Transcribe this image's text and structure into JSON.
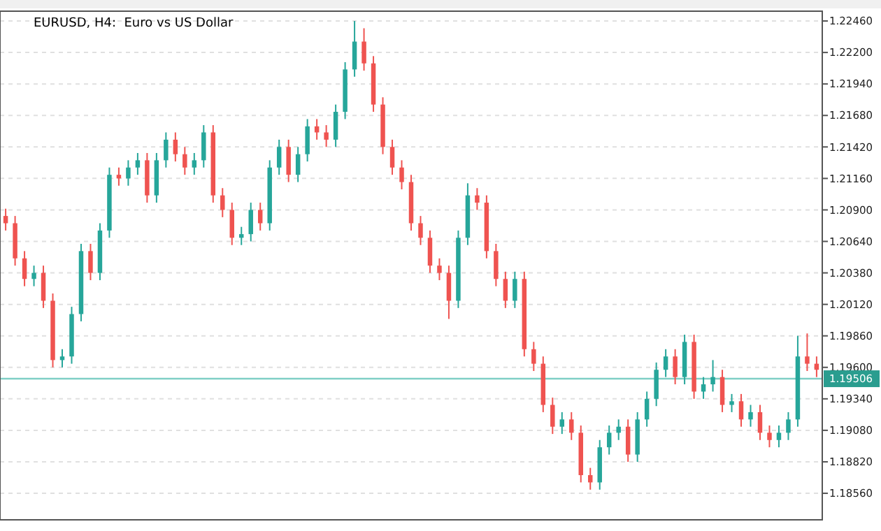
{
  "chart_data": {
    "type": "candlestick",
    "title": "EURUSD, H4:  Euro vs US Dollar",
    "categories": [
      null,
      null,
      null,
      null,
      null,
      null,
      null,
      null,
      null,
      null,
      null,
      null,
      null,
      null,
      null,
      null,
      null,
      null,
      null,
      null,
      null,
      null,
      null,
      null,
      null,
      null,
      null,
      null,
      null,
      null,
      null,
      null,
      null,
      null,
      null,
      null,
      null,
      null,
      null,
      null,
      null,
      null,
      null,
      null,
      null,
      null,
      null,
      null,
      null,
      null,
      null,
      null,
      null,
      null,
      null,
      null,
      null,
      null,
      null,
      null,
      null,
      null,
      null,
      null,
      null,
      null,
      null,
      null,
      null,
      null,
      null,
      null,
      null,
      null,
      null,
      null,
      null,
      null,
      null,
      null,
      null,
      null,
      null,
      null,
      null,
      null,
      null
    ],
    "ohlc": [
      [
        1.2085,
        1.2091,
        1.2073,
        1.2079
      ],
      [
        1.2079,
        1.2085,
        1.2044,
        1.205
      ],
      [
        1.205,
        1.2056,
        1.2027,
        1.2033
      ],
      [
        1.2033,
        1.2044,
        1.2027,
        1.2038
      ],
      [
        1.2038,
        1.2044,
        1.2009,
        1.2015
      ],
      [
        1.2015,
        1.2021,
        1.196,
        1.1966
      ],
      [
        1.1966,
        1.1975,
        1.196,
        1.1969
      ],
      [
        1.1969,
        1.201,
        1.1963,
        1.2004
      ],
      [
        1.2004,
        1.2062,
        1.1998,
        1.2056
      ],
      [
        1.2056,
        1.2062,
        1.2032,
        1.2038
      ],
      [
        1.2038,
        1.2079,
        1.2032,
        1.2073
      ],
      [
        1.2073,
        1.2125,
        1.2067,
        1.2119
      ],
      [
        1.2119,
        1.2125,
        1.211,
        1.2116
      ],
      [
        1.2116,
        1.2131,
        1.211,
        1.2125
      ],
      [
        1.2125,
        1.2137,
        1.2119,
        1.2131
      ],
      [
        1.2131,
        1.2137,
        1.2096,
        1.2102
      ],
      [
        1.2102,
        1.2137,
        1.2096,
        1.2131
      ],
      [
        1.2131,
        1.2154,
        1.2125,
        1.2148
      ],
      [
        1.2148,
        1.2154,
        1.213,
        1.2136
      ],
      [
        1.2136,
        1.2142,
        1.2119,
        1.2125
      ],
      [
        1.2125,
        1.2137,
        1.2119,
        1.2131
      ],
      [
        1.2131,
        1.216,
        1.2125,
        1.2154
      ],
      [
        1.2154,
        1.216,
        1.2096,
        1.2102
      ],
      [
        1.2102,
        1.2108,
        1.2084,
        1.209
      ],
      [
        1.209,
        1.2096,
        1.2061,
        1.2067
      ],
      [
        1.2067,
        1.2076,
        1.2061,
        1.207
      ],
      [
        1.207,
        1.2096,
        1.2064,
        1.209
      ],
      [
        1.209,
        1.2096,
        1.2073,
        1.2079
      ],
      [
        1.2079,
        1.2131,
        1.2073,
        1.2125
      ],
      [
        1.2125,
        1.2148,
        1.2119,
        1.2142
      ],
      [
        1.2142,
        1.2148,
        1.2113,
        1.2119
      ],
      [
        1.2119,
        1.2142,
        1.2113,
        1.2136
      ],
      [
        1.2136,
        1.2165,
        1.213,
        1.2159
      ],
      [
        1.2159,
        1.2165,
        1.2148,
        1.2154
      ],
      [
        1.2154,
        1.216,
        1.2142,
        1.2148
      ],
      [
        1.2148,
        1.2177,
        1.2142,
        1.2171
      ],
      [
        1.2171,
        1.2212,
        1.2165,
        1.2206
      ],
      [
        1.2206,
        1.2246,
        1.22,
        1.2229
      ],
      [
        1.2229,
        1.224,
        1.2205,
        1.2211
      ],
      [
        1.2211,
        1.2217,
        1.2171,
        1.2177
      ],
      [
        1.2177,
        1.2183,
        1.2136,
        1.2142
      ],
      [
        1.2142,
        1.2148,
        1.2119,
        1.2125
      ],
      [
        1.2125,
        1.2131,
        1.2107,
        1.2113
      ],
      [
        1.2113,
        1.2119,
        1.2073,
        1.2079
      ],
      [
        1.2079,
        1.2085,
        1.2061,
        1.2067
      ],
      [
        1.2067,
        1.2073,
        1.2038,
        1.2044
      ],
      [
        1.2044,
        1.205,
        1.2032,
        1.2038
      ],
      [
        1.2038,
        1.2044,
        1.2,
        1.2015
      ],
      [
        1.2015,
        1.2073,
        1.2009,
        1.2067
      ],
      [
        1.2067,
        1.2112,
        1.2061,
        1.2102
      ],
      [
        1.2102,
        1.2108,
        1.209,
        1.2096
      ],
      [
        1.2096,
        1.2102,
        1.205,
        1.2056
      ],
      [
        1.2056,
        1.2062,
        1.2027,
        1.2033
      ],
      [
        1.2033,
        1.2039,
        1.2009,
        1.2015
      ],
      [
        1.2015,
        1.2039,
        1.2009,
        1.2033
      ],
      [
        1.2033,
        1.2039,
        1.1969,
        1.1975
      ],
      [
        1.1975,
        1.1981,
        1.1957,
        1.1963
      ],
      [
        1.1963,
        1.1969,
        1.1923,
        1.1929
      ],
      [
        1.1929,
        1.1935,
        1.1905,
        1.1911
      ],
      [
        1.1911,
        1.1923,
        1.1905,
        1.1917
      ],
      [
        1.1917,
        1.1923,
        1.19,
        1.1906
      ],
      [
        1.1906,
        1.1912,
        1.1865,
        1.1871
      ],
      [
        1.1871,
        1.1877,
        1.1859,
        1.1865
      ],
      [
        1.1865,
        1.19,
        1.1859,
        1.1894
      ],
      [
        1.1894,
        1.1912,
        1.1888,
        1.1906
      ],
      [
        1.1906,
        1.1917,
        1.19,
        1.1911
      ],
      [
        1.1911,
        1.1917,
        1.1882,
        1.1888
      ],
      [
        1.1888,
        1.1923,
        1.1882,
        1.1917
      ],
      [
        1.1917,
        1.194,
        1.1911,
        1.1934
      ],
      [
        1.1934,
        1.1964,
        1.1928,
        1.1958
      ],
      [
        1.1958,
        1.1975,
        1.1952,
        1.1969
      ],
      [
        1.1969,
        1.1975,
        1.1946,
        1.1952
      ],
      [
        1.1952,
        1.1987,
        1.1946,
        1.1981
      ],
      [
        1.1981,
        1.1987,
        1.1934,
        1.194
      ],
      [
        1.194,
        1.1952,
        1.1934,
        1.1946
      ],
      [
        1.1946,
        1.1966,
        1.194,
        1.1952
      ],
      [
        1.1952,
        1.1958,
        1.1923,
        1.1929
      ],
      [
        1.1929,
        1.1938,
        1.1923,
        1.1932
      ],
      [
        1.1932,
        1.1938,
        1.1911,
        1.1917
      ],
      [
        1.1917,
        1.1929,
        1.1911,
        1.1923
      ],
      [
        1.1923,
        1.1929,
        1.19,
        1.1906
      ],
      [
        1.1906,
        1.1912,
        1.1894,
        1.19
      ],
      [
        1.19,
        1.1912,
        1.1894,
        1.1906
      ],
      [
        1.1906,
        1.1923,
        1.19,
        1.1917
      ],
      [
        1.1917,
        1.1986,
        1.1911,
        1.1969
      ],
      [
        1.1969,
        1.1988,
        1.1957,
        1.1963
      ],
      [
        1.1963,
        1.1969,
        1.1952,
        1.1958
      ]
    ],
    "colors": [
      "#ef5350",
      "#ef5350",
      "#ef5350",
      "#26a69a",
      "#ef5350",
      "#ef5350",
      "#26a69a",
      "#26a69a",
      "#26a69a",
      "#ef5350",
      "#26a69a",
      "#26a69a",
      "#ef5350",
      "#26a69a",
      "#26a69a",
      "#ef5350",
      "#26a69a",
      "#26a69a",
      "#ef5350",
      "#ef5350",
      "#26a69a",
      "#26a69a",
      "#ef5350",
      "#ef5350",
      "#ef5350",
      "#26a69a",
      "#26a69a",
      "#ef5350",
      "#26a69a",
      "#26a69a",
      "#ef5350",
      "#26a69a",
      "#26a69a",
      "#ef5350",
      "#ef5350",
      "#26a69a",
      "#26a69a",
      "#26a69a",
      "#ef5350",
      "#ef5350",
      "#ef5350",
      "#ef5350",
      "#ef5350",
      "#ef5350",
      "#ef5350",
      "#ef5350",
      "#ef5350",
      "#ef5350",
      "#26a69a",
      "#26a69a",
      "#ef5350",
      "#ef5350",
      "#ef5350",
      "#ef5350",
      "#26a69a",
      "#ef5350",
      "#ef5350",
      "#ef5350",
      "#ef5350",
      "#26a69a",
      "#ef5350",
      "#ef5350",
      "#ef5350",
      "#26a69a",
      "#26a69a",
      "#26a69a",
      "#ef5350",
      "#26a69a",
      "#26a69a",
      "#26a69a",
      "#26a69a",
      "#ef5350",
      "#26a69a",
      "#ef5350",
      "#26a69a",
      "#26a69a",
      "#ef5350",
      "#26a69a",
      "#ef5350",
      "#26a69a",
      "#ef5350",
      "#ef5350",
      "#26a69a",
      "#26a69a",
      "#26a69a",
      "#ef5350",
      "#ef5350"
    ],
    "ylim": [
      1.18341,
      1.22541
    ],
    "yticks": [
      {
        "value": 1.1856,
        "label": "1.18560"
      },
      {
        "value": 1.1882,
        "label": "1.18820"
      },
      {
        "value": 1.1908,
        "label": "1.19080"
      },
      {
        "value": 1.1934,
        "label": "1.19340"
      },
      {
        "value": 1.196,
        "label": "1.19600"
      },
      {
        "value": 1.1986,
        "label": "1.19860"
      },
      {
        "value": 1.2012,
        "label": "1.20120"
      },
      {
        "value": 1.2038,
        "label": "1.20380"
      },
      {
        "value": 1.2064,
        "label": "1.20640"
      },
      {
        "value": 1.209,
        "label": "1.20900"
      },
      {
        "value": 1.2116,
        "label": "1.21160"
      },
      {
        "value": 1.2142,
        "label": "1.21420"
      },
      {
        "value": 1.2168,
        "label": "1.21680"
      },
      {
        "value": 1.2194,
        "label": "1.21940"
      },
      {
        "value": 1.222,
        "label": "1.22200"
      },
      {
        "value": 1.2246,
        "label": "1.22460"
      }
    ],
    "ref_lines": [
      {
        "axis": "y",
        "value": 1.19506,
        "label": "1.19506",
        "color": "#7fcfc5"
      }
    ],
    "grid": "y"
  }
}
